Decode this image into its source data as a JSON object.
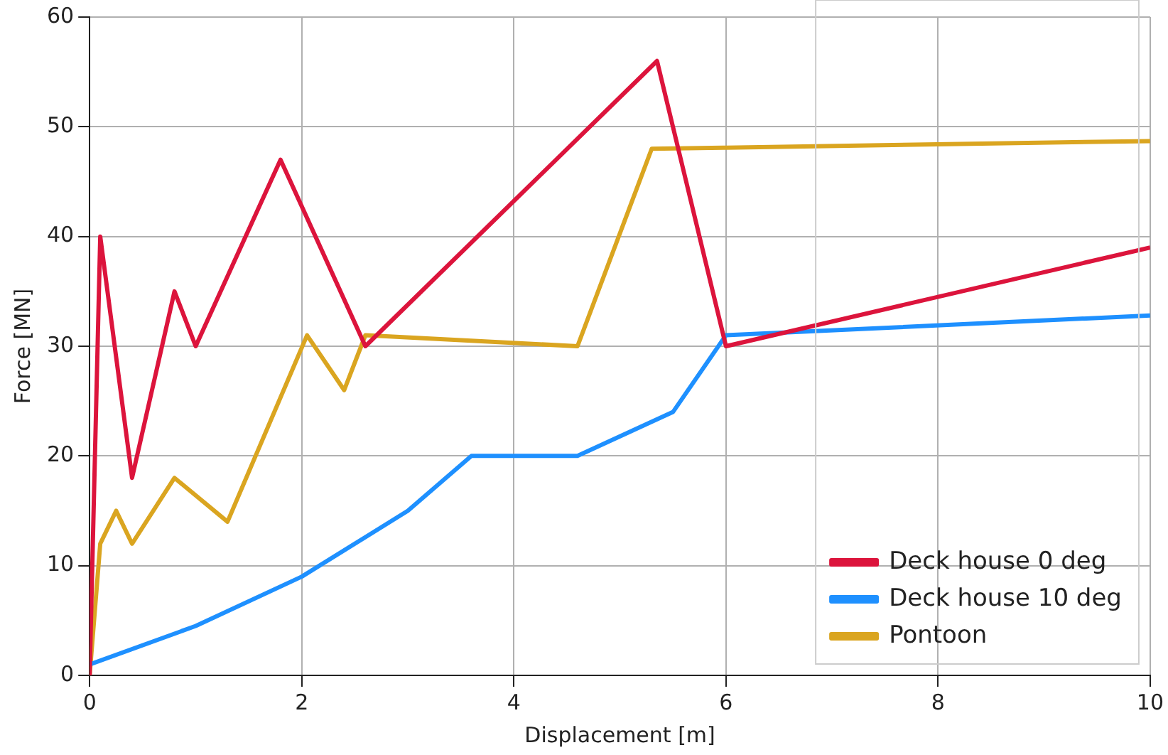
{
  "chart_data": {
    "type": "line",
    "xlabel": "Displacement [m]",
    "ylabel": "Force [MN]",
    "xlim": [
      0,
      10
    ],
    "xticks": [
      0,
      2,
      4,
      6,
      8,
      10
    ],
    "ylim": [
      0,
      60
    ],
    "yticks": [
      0,
      10,
      20,
      30,
      40,
      50,
      60
    ],
    "grid": true,
    "legend": "bottom right",
    "marker": "none",
    "line_style": "solid",
    "series": [
      {
        "name": "Deck house 0 deg",
        "color": "#dc143c",
        "x": [
          0,
          0.1,
          0.4,
          0.8,
          1.0,
          1.8,
          2.6,
          5.35,
          6.0,
          10
        ],
        "values": [
          0,
          40,
          18,
          35,
          30,
          47,
          30,
          56,
          30,
          39
        ]
      },
      {
        "name": "Deck house 10 deg",
        "color": "#1e90ff",
        "x": [
          0,
          1,
          2,
          3,
          3.6,
          4.6,
          5.5,
          6,
          10
        ],
        "values": [
          1,
          4.5,
          9,
          15,
          20,
          20,
          24,
          31,
          32.8
        ]
      },
      {
        "name": "Pontoon",
        "color": "#daa520",
        "x": [
          0,
          0.1,
          0.25,
          0.4,
          0.8,
          1.3,
          2.05,
          2.4,
          2.6,
          4.6,
          5.3,
          6,
          10
        ],
        "values": [
          0,
          12,
          15,
          12,
          18,
          14,
          31,
          26,
          31,
          30,
          48,
          48.1,
          48.7
        ]
      }
    ]
  }
}
